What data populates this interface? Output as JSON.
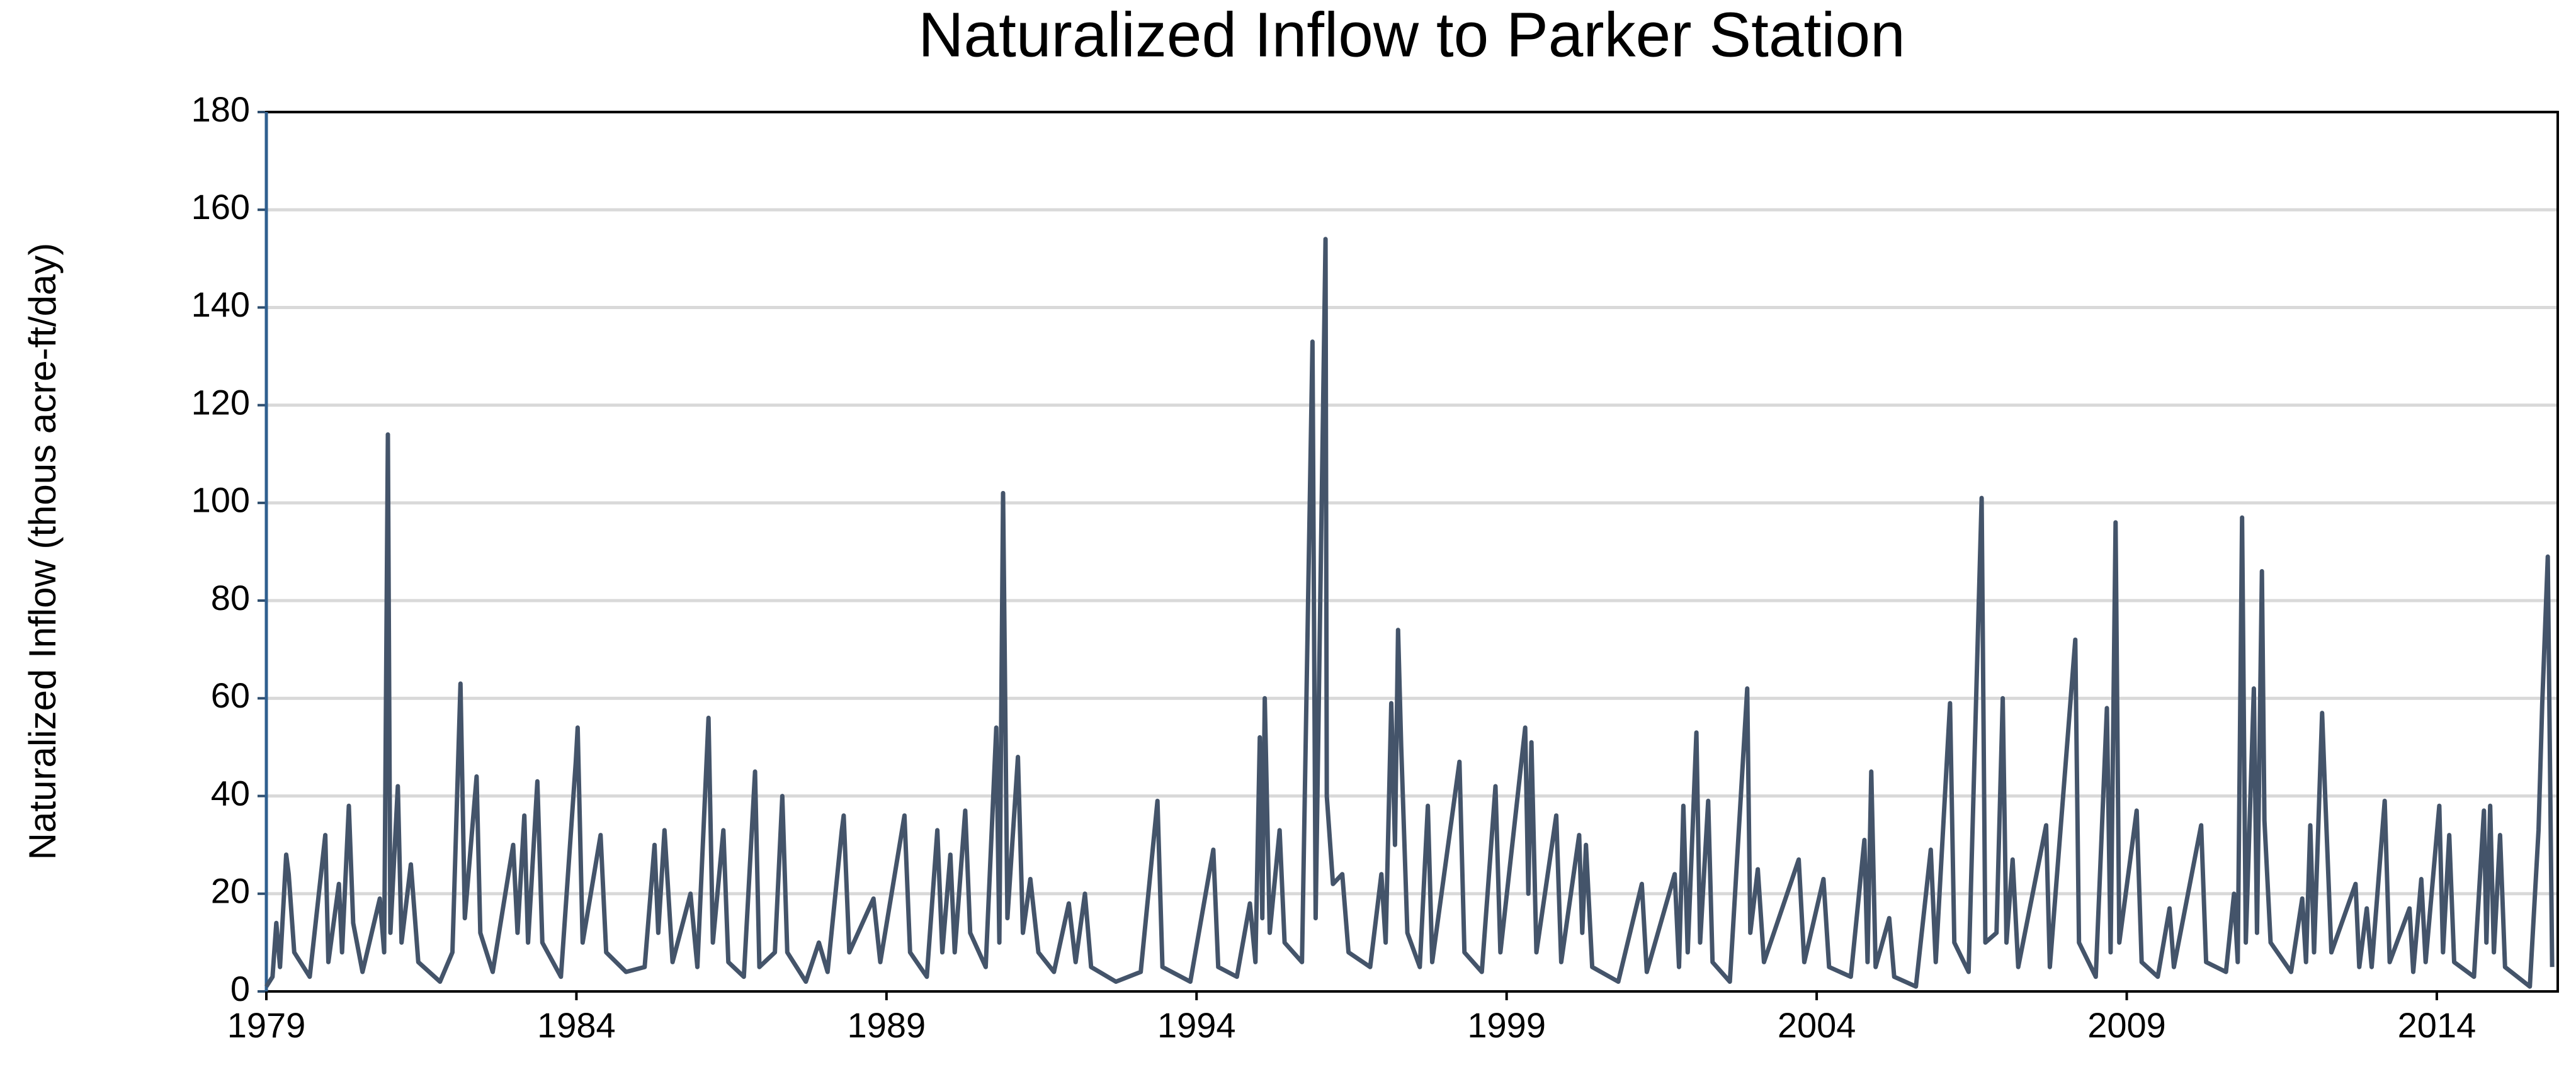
{
  "chart_data": {
    "type": "line",
    "title": "Naturalized Inflow to Parker Station",
    "y_label": "Naturalized Inflow (thous acre-ft/day)",
    "xlim": [
      1979,
      2015.95
    ],
    "xticks": [
      1979,
      1984,
      1989,
      1994,
      1999,
      2004,
      2009,
      2014
    ],
    "ylim": [
      0,
      180
    ],
    "yticks": [
      0,
      20,
      40,
      60,
      80,
      100,
      120,
      140,
      160,
      180
    ],
    "grid": true,
    "series": [
      {
        "name": "Naturalized Inflow",
        "color": "#44546a",
        "x": [
          1979.0,
          1979.1,
          1979.16,
          1979.22,
          1979.32,
          1979.36,
          1979.45,
          1979.7,
          1979.95,
          1980.0,
          1980.17,
          1980.22,
          1980.33,
          1980.4,
          1980.55,
          1980.83,
          1980.9,
          1980.96,
          1981.0,
          1981.12,
          1981.18,
          1981.33,
          1981.45,
          1981.8,
          1982.0,
          1982.13,
          1982.2,
          1982.39,
          1982.45,
          1982.65,
          1982.98,
          1983.05,
          1983.16,
          1983.22,
          1983.37,
          1983.45,
          1983.75,
          1983.99,
          1984.02,
          1984.1,
          1984.39,
          1984.48,
          1984.8,
          1985.1,
          1985.26,
          1985.32,
          1985.42,
          1985.55,
          1985.84,
          1985.95,
          1986.13,
          1986.2,
          1986.37,
          1986.45,
          1986.7,
          1986.88,
          1986.95,
          1987.2,
          1987.32,
          1987.4,
          1987.7,
          1987.91,
          1988.05,
          1988.28,
          1988.31,
          1988.4,
          1988.79,
          1988.9,
          1989.29,
          1989.38,
          1989.65,
          1989.82,
          1989.9,
          1990.03,
          1990.1,
          1990.27,
          1990.35,
          1990.6,
          1990.77,
          1990.82,
          1990.88,
          1990.95,
          1991.12,
          1991.2,
          1991.32,
          1991.45,
          1991.7,
          1991.94,
          1992.05,
          1992.2,
          1992.3,
          1992.7,
          1993.1,
          1993.37,
          1993.45,
          1993.9,
          1994.27,
          1994.35,
          1994.65,
          1994.86,
          1994.95,
          1995.02,
          1995.06,
          1995.1,
          1995.18,
          1995.34,
          1995.42,
          1995.7,
          1995.87,
          1995.92,
          1996.08,
          1996.1,
          1996.2,
          1996.35,
          1996.45,
          1996.8,
          1996.98,
          1997.05,
          1997.14,
          1997.2,
          1997.25,
          1997.3,
          1997.4,
          1997.6,
          1997.73,
          1997.8,
          1998.24,
          1998.32,
          1998.6,
          1998.82,
          1998.9,
          1999.3,
          1999.35,
          1999.4,
          1999.48,
          1999.8,
          1999.88,
          2000.17,
          2000.22,
          2000.28,
          2000.38,
          2000.8,
          2001.18,
          2001.26,
          2001.71,
          2001.78,
          2001.85,
          2001.92,
          2002.06,
          2002.12,
          2002.25,
          2002.32,
          2002.6,
          2002.88,
          2002.93,
          2003.05,
          2003.15,
          2003.71,
          2003.8,
          2004.11,
          2004.2,
          2004.55,
          2004.77,
          2004.82,
          2004.88,
          2004.95,
          2005.17,
          2005.25,
          2005.6,
          2005.84,
          2005.92,
          2006.15,
          2006.22,
          2006.45,
          2006.66,
          2006.72,
          2006.9,
          2007.0,
          2007.06,
          2007.16,
          2007.25,
          2007.7,
          2007.76,
          2008.17,
          2008.23,
          2008.5,
          2008.68,
          2008.74,
          2008.82,
          2008.88,
          2009.16,
          2009.24,
          2009.5,
          2009.69,
          2009.76,
          2010.2,
          2010.28,
          2010.6,
          2010.73,
          2010.79,
          2010.86,
          2010.92,
          2011.05,
          2011.1,
          2011.18,
          2011.22,
          2011.32,
          2011.65,
          2011.83,
          2011.89,
          2011.96,
          2012.02,
          2012.15,
          2012.2,
          2012.3,
          2012.69,
          2012.75,
          2012.87,
          2012.95,
          2013.16,
          2013.24,
          2013.56,
          2013.62,
          2013.75,
          2013.82,
          2014.04,
          2014.1,
          2014.2,
          2014.28,
          2014.6,
          2014.76,
          2014.8,
          2014.86,
          2014.92,
          2015.02,
          2015.1,
          2015.5,
          2015.64,
          2015.7,
          2015.79,
          2015.86
        ],
        "values": [
          1,
          3,
          14,
          5,
          28,
          24,
          8,
          3,
          32,
          6,
          22,
          8,
          38,
          14,
          4,
          19,
          8,
          114,
          12,
          42,
          10,
          26,
          6,
          2,
          8,
          63,
          15,
          44,
          12,
          4,
          30,
          12,
          36,
          10,
          43,
          10,
          3,
          47,
          54,
          10,
          32,
          8,
          4,
          5,
          30,
          12,
          33,
          6,
          20,
          5,
          56,
          10,
          33,
          6,
          3,
          45,
          5,
          8,
          40,
          8,
          2,
          10,
          4,
          33,
          36,
          8,
          19,
          6,
          36,
          8,
          3,
          33,
          8,
          28,
          8,
          37,
          12,
          5,
          54,
          10,
          102,
          15,
          48,
          12,
          23,
          8,
          4,
          18,
          6,
          20,
          5,
          2,
          4,
          39,
          5,
          2,
          29,
          5,
          3,
          18,
          6,
          52,
          15,
          60,
          12,
          33,
          10,
          6,
          133,
          15,
          154,
          40,
          22,
          24,
          8,
          5,
          24,
          10,
          59,
          30,
          74,
          50,
          12,
          5,
          38,
          6,
          47,
          8,
          4,
          42,
          8,
          54,
          20,
          51,
          8,
          36,
          6,
          32,
          12,
          30,
          5,
          2,
          22,
          4,
          24,
          5,
          38,
          8,
          53,
          10,
          39,
          6,
          2,
          62,
          12,
          25,
          6,
          27,
          6,
          23,
          5,
          3,
          31,
          6,
          45,
          5,
          15,
          3,
          1,
          29,
          6,
          59,
          10,
          4,
          101,
          10,
          12,
          60,
          10,
          27,
          5,
          34,
          5,
          72,
          10,
          3,
          58,
          8,
          96,
          10,
          37,
          6,
          3,
          17,
          5,
          34,
          6,
          4,
          20,
          6,
          97,
          10,
          62,
          12,
          86,
          35,
          10,
          4,
          19,
          6,
          34,
          8,
          57,
          40,
          8,
          22,
          5,
          17,
          5,
          39,
          6,
          17,
          4,
          23,
          6,
          38,
          8,
          32,
          6,
          3,
          37,
          10,
          38,
          8,
          32,
          5,
          1,
          33,
          59,
          89,
          5
        ]
      }
    ]
  }
}
